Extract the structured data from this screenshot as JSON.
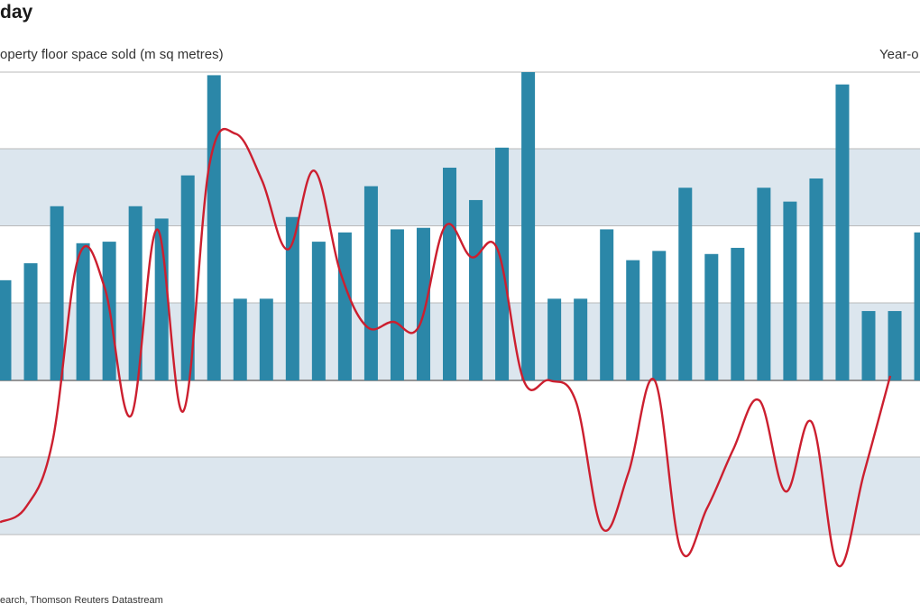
{
  "header": {
    "title": "day",
    "ylabel_left": "operty floor space sold (m sq metres)",
    "ylabel_right": "Year-o",
    "source": "earch, Thomson Reuters Datastream"
  },
  "chart_data": {
    "type": "bar+line",
    "title": "day",
    "ylabel": "operty floor space sold (m sq metres)",
    "ylabel_right": "Year-o",
    "grid": true,
    "bar_color": "#2b87a8",
    "line_color": "#cc1f2f",
    "band_color": "#dce6ee",
    "bar_range": [
      -20,
      20
    ],
    "bar_values": [
      6.5,
      7.6,
      11.3,
      8.9,
      9.0,
      11.3,
      10.5,
      13.3,
      19.8,
      5.3,
      5.3,
      10.6,
      9.0,
      9.6,
      12.6,
      9.8,
      9.9,
      13.8,
      11.7,
      15.1,
      20.0,
      5.3,
      5.3,
      9.8,
      7.8,
      8.4,
      12.5,
      8.2,
      8.6,
      12.5,
      11.6,
      13.1,
      19.2,
      4.5,
      4.5,
      9.6
    ],
    "line_range": [
      -20,
      20
    ],
    "line_values": [
      -9.2,
      -8.2,
      -4.0,
      8.0,
      6.0,
      -2.3,
      9.8,
      -2.0,
      14.0,
      16.0,
      13.0,
      8.5,
      13.6,
      7.0,
      3.5,
      3.8,
      3.5,
      10.0,
      8.0,
      8.5,
      0.0,
      0.0,
      -1.4,
      -9.6,
      -6.0,
      0.0,
      -11.0,
      -8.3,
      -4.5,
      -1.3,
      -7.2,
      -2.7,
      -12.0,
      -6.0,
      0.3
    ]
  }
}
